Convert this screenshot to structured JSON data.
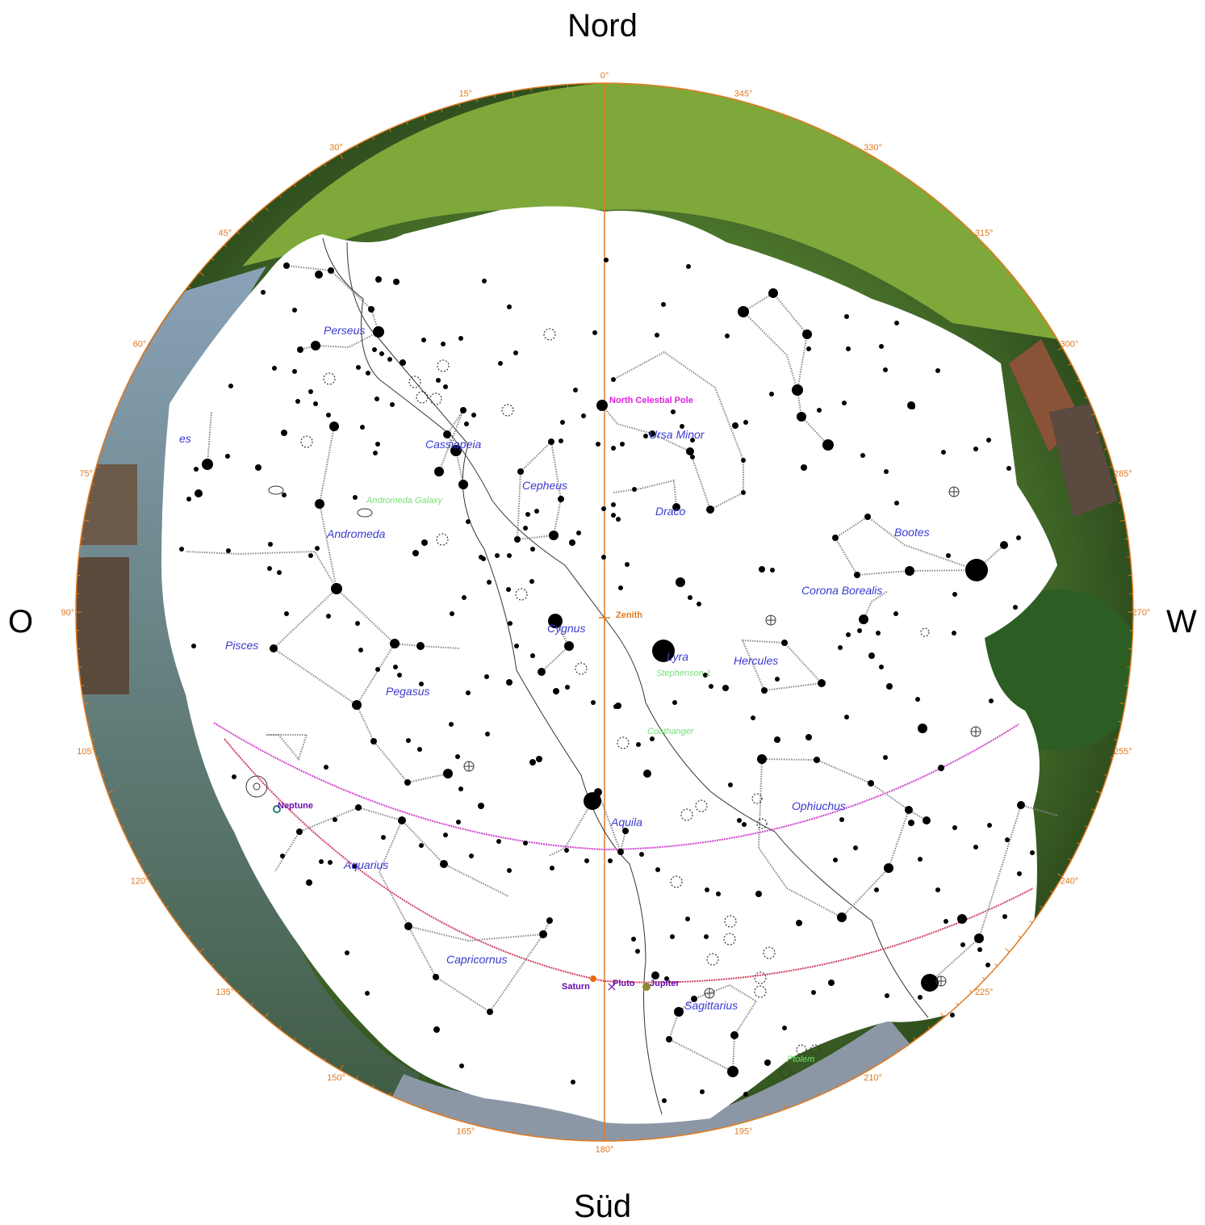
{
  "directions": {
    "north": "Nord",
    "south": "Süd",
    "east": "O",
    "west": "W"
  },
  "azimuth_labels": [
    "0°",
    "15°",
    "30°",
    "45°",
    "60°",
    "75°",
    "90°",
    "105°",
    "120°",
    "135°",
    "150°",
    "165°",
    "180°",
    "195°",
    "210°",
    "225°",
    "240°",
    "255°",
    "270°",
    "285°",
    "300°",
    "315°",
    "330°",
    "345°"
  ],
  "constellations": [
    "Perseus",
    "Cassiopeia",
    "Cepheus",
    "Ursa Minor",
    "Draco",
    "Andromeda",
    "Bootes",
    "Corona Borealis",
    "Cygnus",
    "Lyra",
    "Hercules",
    "Pisces",
    "Pegasus",
    "Ophiuchus",
    "Aquila",
    "Aquarius",
    "Capricornus",
    "Sagittarius",
    "es"
  ],
  "deep_sky": [
    "Andromeda Galaxy",
    "Stephenson 1",
    "Coathanger",
    "Ptolem"
  ],
  "planets": [
    "Neptune",
    "Saturn",
    "Pluto",
    "Jupiter"
  ],
  "markers": {
    "pole": "North Celestial Pole",
    "zenith": "Zenith"
  },
  "colors": {
    "azimuth": "#e07a20",
    "constellation_label": "#3a3ad0",
    "deep_sky_label": "#78e078",
    "planet_label": "#6a0dad",
    "pole_label": "#e020e0",
    "equator_line": "#d040d0",
    "ecliptic_line": "#d04060",
    "meridian": "#e07a20"
  }
}
